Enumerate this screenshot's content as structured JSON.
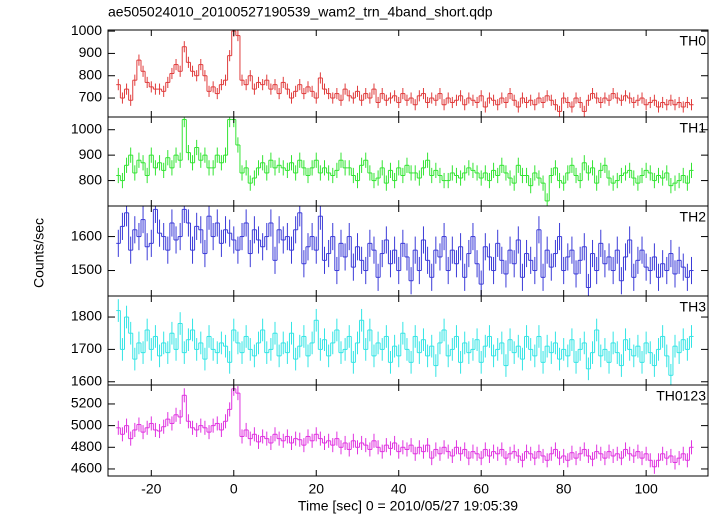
{
  "chart_data": {
    "type": "step",
    "title": "ae505024010_20100527190539_wam2_trn_4band_short.qdp",
    "xlabel": "Time [sec] 0 = 2010/05/27 19:05:39",
    "ylabel": "Counts/sec",
    "xlim": [
      -30.5,
      115
    ],
    "xticks": [
      -20,
      0,
      20,
      40,
      60,
      80,
      100
    ],
    "x": [
      -28,
      -27,
      -26,
      -25,
      -24,
      -23,
      -22,
      -21,
      -20,
      -19,
      -18,
      -17,
      -16,
      -15,
      -14,
      -13,
      -12,
      -11,
      -10,
      -9,
      -8,
      -7,
      -6,
      -5,
      -4,
      -3,
      -2,
      -1,
      0,
      1,
      2,
      3,
      4,
      5,
      6,
      7,
      8,
      9,
      10,
      11,
      12,
      13,
      14,
      15,
      16,
      17,
      18,
      19,
      20,
      21,
      22,
      23,
      24,
      25,
      26,
      27,
      28,
      29,
      30,
      31,
      32,
      33,
      34,
      35,
      36,
      37,
      38,
      39,
      40,
      41,
      42,
      43,
      44,
      45,
      46,
      47,
      48,
      49,
      50,
      51,
      52,
      53,
      54,
      55,
      56,
      57,
      58,
      59,
      60,
      61,
      62,
      63,
      64,
      65,
      66,
      67,
      68,
      69,
      70,
      71,
      72,
      73,
      74,
      75,
      76,
      77,
      78,
      79,
      80,
      81,
      82,
      83,
      84,
      85,
      86,
      87,
      88,
      89,
      90,
      91,
      92,
      93,
      94,
      95,
      96,
      97,
      98,
      99,
      100,
      101,
      102,
      103,
      104,
      105,
      106,
      107,
      108,
      109,
      110,
      111
    ],
    "series": [
      {
        "name": "TH0",
        "color": "#e03c3c",
        "ylim": [
          615,
          1005
        ],
        "yticks": [
          700,
          800,
          900,
          1000
        ],
        "error": 25,
        "values": [
          760,
          700,
          740,
          690,
          780,
          870,
          820,
          770,
          750,
          740,
          740,
          730,
          770,
          810,
          850,
          820,
          930,
          860,
          820,
          800,
          850,
          800,
          730,
          750,
          720,
          760,
          780,
          890,
          1000,
          980,
          780,
          760,
          800,
          740,
          770,
          760,
          780,
          740,
          760,
          720,
          770,
          740,
          700,
          730,
          760,
          720,
          750,
          730,
          700,
          790,
          740,
          720,
          700,
          720,
          690,
          740,
          710,
          700,
          730,
          690,
          720,
          700,
          740,
          680,
          720,
          690,
          700,
          710,
          680,
          720,
          690,
          700,
          670,
          710,
          720,
          680,
          700,
          690,
          720,
          670,
          700,
          680,
          690,
          710,
          670,
          700,
          690,
          680,
          710,
          660,
          700,
          690,
          670,
          700,
          680,
          720,
          690,
          660,
          700,
          680,
          690,
          670,
          700,
          680,
          710,
          690,
          670,
          640,
          700,
          680,
          660,
          700,
          680,
          640,
          690,
          720,
          700,
          680,
          700,
          690,
          720,
          700,
          690,
          710,
          700,
          680,
          690,
          700,
          670,
          680,
          690,
          660,
          680,
          670,
          690,
          670,
          680,
          660,
          680,
          670
        ]
      },
      {
        "name": "TH1",
        "color": "#33e533",
        "ylim": [
          700,
          1050
        ],
        "yticks": [
          800,
          900,
          1000
        ],
        "error": 30,
        "values": [
          820,
          800,
          860,
          900,
          830,
          880,
          870,
          820,
          900,
          850,
          870,
          840,
          890,
          850,
          900,
          880,
          1040,
          910,
          870,
          930,
          880,
          900,
          850,
          850,
          900,
          870,
          900,
          1040,
          1040,
          940,
          830,
          850,
          790,
          810,
          850,
          870,
          830,
          880,
          850,
          860,
          850,
          840,
          870,
          830,
          880,
          850,
          820,
          850,
          880,
          830,
          850,
          830,
          820,
          840,
          880,
          850,
          850,
          820,
          800,
          860,
          880,
          830,
          800,
          810,
          850,
          790,
          840,
          800,
          850,
          820,
          860,
          830,
          830,
          810,
          850,
          880,
          820,
          840,
          820,
          800,
          800,
          830,
          820,
          810,
          830,
          850,
          840,
          830,
          810,
          830,
          800,
          840,
          820,
          860,
          830,
          810,
          790,
          860,
          820,
          820,
          780,
          830,
          810,
          790,
          720,
          820,
          850,
          800,
          790,
          830,
          860,
          820,
          800,
          870,
          830,
          850,
          790,
          840,
          860,
          810,
          790,
          800,
          820,
          830,
          840,
          810,
          790,
          820,
          840,
          830,
          800,
          820,
          810,
          830,
          780,
          790,
          800,
          820,
          790,
          840
        ]
      },
      {
        "name": "TH2",
        "color": "#3b3bd8",
        "ylim": [
          1425,
          1690
        ],
        "yticks": [
          1500,
          1600
        ],
        "error": 40,
        "values": [
          1580,
          1630,
          1670,
          1560,
          1620,
          1600,
          1650,
          1570,
          1580,
          1680,
          1610,
          1600,
          1560,
          1640,
          1590,
          1600,
          1680,
          1640,
          1560,
          1630,
          1620,
          1550,
          1660,
          1600,
          1640,
          1580,
          1620,
          1610,
          1590,
          1560,
          1600,
          1640,
          1550,
          1620,
          1590,
          1570,
          1600,
          1640,
          1530,
          1620,
          1590,
          1600,
          1560,
          1620,
          1670,
          1520,
          1570,
          1600,
          1560,
          1660,
          1530,
          1550,
          1600,
          1500,
          1580,
          1540,
          1600,
          1510,
          1570,
          1530,
          1500,
          1580,
          1560,
          1480,
          1550,
          1590,
          1520,
          1560,
          1500,
          1580,
          1540,
          1470,
          1560,
          1500,
          1590,
          1530,
          1480,
          1560,
          1540,
          1600,
          1500,
          1560,
          1520,
          1570,
          1480,
          1550,
          1600,
          1520,
          1460,
          1570,
          1540,
          1500,
          1580,
          1530,
          1490,
          1560,
          1520,
          1590,
          1480,
          1550,
          1530,
          1500,
          1620,
          1480,
          1560,
          1510,
          1550,
          1600,
          1500,
          1540,
          1560,
          1490,
          1530,
          1570,
          1450,
          1550,
          1500,
          1580,
          1520,
          1540,
          1500,
          1560,
          1470,
          1540,
          1590,
          1480,
          1530,
          1560,
          1510,
          1500,
          1540,
          1480,
          1520,
          1500,
          1550,
          1490,
          1530,
          1510,
          1480,
          1500
        ]
      },
      {
        "name": "TH3",
        "color": "#33e5e5",
        "ylim": [
          1590,
          1865
        ],
        "yticks": [
          1600,
          1700,
          1800
        ],
        "error": 35,
        "values": [
          1820,
          1700,
          1800,
          1750,
          1670,
          1720,
          1690,
          1760,
          1700,
          1740,
          1680,
          1720,
          1690,
          1750,
          1700,
          1780,
          1690,
          1730,
          1760,
          1700,
          1720,
          1670,
          1740,
          1700,
          1690,
          1720,
          1710,
          1660,
          1760,
          1720,
          1690,
          1740,
          1700,
          1680,
          1720,
          1760,
          1690,
          1700,
          1750,
          1680,
          1720,
          1690,
          1750,
          1670,
          1710,
          1740,
          1680,
          1720,
          1790,
          1700,
          1730,
          1680,
          1720,
          1760,
          1690,
          1700,
          1740,
          1660,
          1720,
          1790,
          1700,
          1760,
          1680,
          1720,
          1700,
          1740,
          1660,
          1710,
          1680,
          1750,
          1700,
          1660,
          1740,
          1690,
          1730,
          1680,
          1710,
          1650,
          1720,
          1760,
          1680,
          1700,
          1740,
          1660,
          1720,
          1690,
          1700,
          1730,
          1660,
          1710,
          1740,
          1680,
          1700,
          1720,
          1650,
          1730,
          1690,
          1710,
          1670,
          1740,
          1700,
          1680,
          1740,
          1660,
          1710,
          1690,
          1720,
          1670,
          1700,
          1680,
          1730,
          1660,
          1700,
          1720,
          1640,
          1690,
          1760,
          1680,
          1700,
          1660,
          1720,
          1690,
          1650,
          1730,
          1700,
          1680,
          1710,
          1660,
          1720,
          1690,
          1650,
          1700,
          1740,
          1680,
          1620,
          1710,
          1690,
          1730,
          1700,
          1740
        ]
      },
      {
        "name": "TH0123",
        "color": "#e033e0",
        "ylim": [
          4535,
          5375
        ],
        "yticks": [
          4600,
          4800,
          5000,
          5200
        ],
        "error": 65,
        "values": [
          4980,
          4920,
          5000,
          4880,
          4960,
          5010,
          4940,
          4980,
          5020,
          4960,
          4950,
          4990,
          5060,
          5020,
          5100,
          5080,
          5280,
          5040,
          4980,
          4960,
          5000,
          4980,
          4940,
          5000,
          5020,
          4960,
          5040,
          5150,
          5340,
          5300,
          4900,
          4960,
          4880,
          4920,
          4850,
          4900,
          4880,
          4840,
          4920,
          4880,
          4860,
          4900,
          4840,
          4880,
          4870,
          4820,
          4900,
          4860,
          4920,
          4880,
          4840,
          4860,
          4820,
          4880,
          4800,
          4840,
          4780,
          4860,
          4800,
          4840,
          4820,
          4780,
          4860,
          4800,
          4760,
          4820,
          4790,
          4840,
          4760,
          4800,
          4780,
          4820,
          4740,
          4800,
          4760,
          4820,
          4700,
          4780,
          4740,
          4800,
          4760,
          4720,
          4800,
          4740,
          4780,
          4700,
          4760,
          4740,
          4700,
          4780,
          4720,
          4760,
          4740,
          4780,
          4700,
          4740,
          4760,
          4720,
          4680,
          4760,
          4740,
          4700,
          4760,
          4720,
          4680,
          4740,
          4780,
          4700,
          4720,
          4680,
          4750,
          4700,
          4740,
          4780,
          4720,
          4690,
          4760,
          4740,
          4700,
          4760,
          4720,
          4740,
          4700,
          4780,
          4740,
          4720,
          4760,
          4700,
          4740,
          4680,
          4620,
          4680,
          4740,
          4700,
          4720,
          4660,
          4700,
          4740,
          4680,
          4800
        ]
      }
    ]
  }
}
